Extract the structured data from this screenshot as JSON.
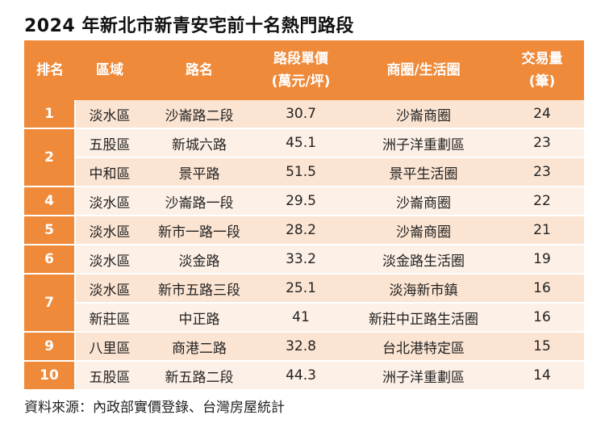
{
  "title": "2024 年新北市新青安宅前十名熱門路段",
  "headers": {
    "rank": "排名",
    "district": "區域",
    "road": "路名",
    "price_line1": "路段單價",
    "price_line2": "(萬元/坪)",
    "area": "商圈/生活圈",
    "volume_line1": "交易量",
    "volume_line2": "(筆)"
  },
  "rows": [
    {
      "rank": "1",
      "district": "淡水區",
      "road": "沙崙路二段",
      "price": "30.7",
      "area": "沙崙商圈",
      "volume": "24"
    },
    {
      "rank": "2",
      "district": "五股區",
      "road": "新城六路",
      "price": "45.1",
      "area": "洲子洋重劃區",
      "volume": "23"
    },
    {
      "rank": "2",
      "district": "中和區",
      "road": "景平路",
      "price": "51.5",
      "area": "景平生活圈",
      "volume": "23"
    },
    {
      "rank": "4",
      "district": "淡水區",
      "road": "沙崙路一段",
      "price": "29.5",
      "area": "沙崙商圈",
      "volume": "22"
    },
    {
      "rank": "5",
      "district": "淡水區",
      "road": "新市一路一段",
      "price": "28.2",
      "area": "沙崙商圈",
      "volume": "21"
    },
    {
      "rank": "6",
      "district": "淡水區",
      "road": "淡金路",
      "price": "33.2",
      "area": "淡金路生活圈",
      "volume": "19"
    },
    {
      "rank": "7",
      "district": "淡水區",
      "road": "新市五路三段",
      "price": "25.1",
      "area": "淡海新市鎮",
      "volume": "16"
    },
    {
      "rank": "7",
      "district": "新莊區",
      "road": "中正路",
      "price": "41",
      "area": "新莊中正路生活圈",
      "volume": "16"
    },
    {
      "rank": "9",
      "district": "八里區",
      "road": "商港二路",
      "price": "32.8",
      "area": "台北港特定區",
      "volume": "15"
    },
    {
      "rank": "10",
      "district": "五股區",
      "road": "新五路二段",
      "price": "44.3",
      "area": "洲子洋重劃區",
      "volume": "14"
    }
  ],
  "source": "資料來源：內政部實價登錄、台灣房屋統計",
  "colors": {
    "header": "#ef8a3a",
    "row_dark": "#fbe4d2",
    "row_light": "#fdf0e6"
  }
}
